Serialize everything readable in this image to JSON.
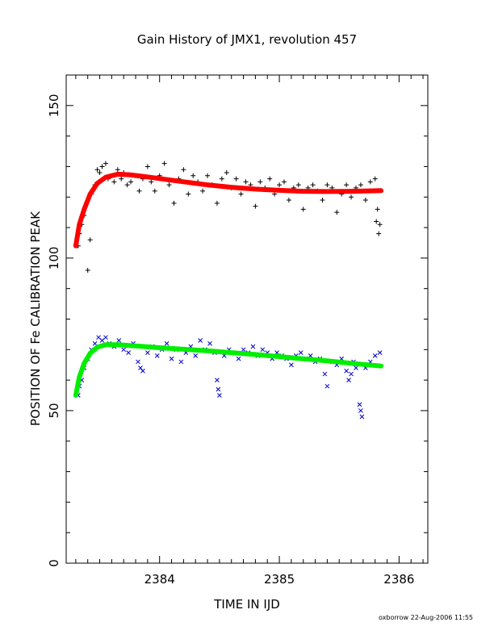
{
  "chart_data": {
    "type": "scatter",
    "title": "Gain History of JMX1, revolution 457",
    "xlabel": "TIME IN IJD",
    "ylabel": "POSITION OF Fe CALIBRATION PEAK",
    "xlim": [
      2383.22,
      2386.24
    ],
    "ylim": [
      0,
      160
    ],
    "xticks": [
      2384,
      2385,
      2386
    ],
    "yticks": [
      0,
      50,
      100,
      150
    ],
    "grid": false,
    "footer": "oxborrow 22-Aug-2006 11:55",
    "series": [
      {
        "marker": "plus",
        "color": "#000000",
        "points": [
          [
            2383.32,
            104
          ],
          [
            2383.33,
            108
          ],
          [
            2383.35,
            111
          ],
          [
            2383.37,
            114
          ],
          [
            2383.39,
            118
          ],
          [
            2383.4,
            96
          ],
          [
            2383.42,
            106
          ],
          [
            2383.43,
            121
          ],
          [
            2383.46,
            124
          ],
          [
            2383.48,
            129
          ],
          [
            2383.5,
            128
          ],
          [
            2383.52,
            130
          ],
          [
            2383.55,
            131
          ],
          [
            2383.57,
            126
          ],
          [
            2383.6,
            127
          ],
          [
            2383.62,
            125
          ],
          [
            2383.65,
            129
          ],
          [
            2383.68,
            126
          ],
          [
            2383.7,
            128
          ],
          [
            2383.73,
            124
          ],
          [
            2383.76,
            125
          ],
          [
            2383.8,
            127
          ],
          [
            2383.83,
            122
          ],
          [
            2383.86,
            126
          ],
          [
            2383.9,
            130
          ],
          [
            2383.93,
            125
          ],
          [
            2383.96,
            122
          ],
          [
            2384.0,
            127
          ],
          [
            2384.04,
            131
          ],
          [
            2384.08,
            124
          ],
          [
            2384.12,
            118
          ],
          [
            2384.16,
            126
          ],
          [
            2384.2,
            129
          ],
          [
            2384.24,
            121
          ],
          [
            2384.28,
            127
          ],
          [
            2384.32,
            125
          ],
          [
            2384.36,
            122
          ],
          [
            2384.4,
            127
          ],
          [
            2384.44,
            124
          ],
          [
            2384.48,
            118
          ],
          [
            2384.52,
            126
          ],
          [
            2384.56,
            128
          ],
          [
            2384.6,
            123
          ],
          [
            2384.64,
            126
          ],
          [
            2384.68,
            121
          ],
          [
            2384.72,
            125
          ],
          [
            2384.76,
            124
          ],
          [
            2384.8,
            117
          ],
          [
            2384.84,
            125
          ],
          [
            2384.88,
            123
          ],
          [
            2384.92,
            126
          ],
          [
            2384.96,
            121
          ],
          [
            2385.0,
            124
          ],
          [
            2385.04,
            125
          ],
          [
            2385.08,
            119
          ],
          [
            2385.12,
            123
          ],
          [
            2385.16,
            124
          ],
          [
            2385.2,
            116
          ],
          [
            2385.24,
            123
          ],
          [
            2385.28,
            124
          ],
          [
            2385.32,
            122
          ],
          [
            2385.36,
            119
          ],
          [
            2385.4,
            124
          ],
          [
            2385.44,
            123
          ],
          [
            2385.48,
            115
          ],
          [
            2385.52,
            121
          ],
          [
            2385.56,
            124
          ],
          [
            2385.6,
            120
          ],
          [
            2385.64,
            123
          ],
          [
            2385.68,
            124
          ],
          [
            2385.72,
            119
          ],
          [
            2385.76,
            125
          ],
          [
            2385.8,
            126
          ],
          [
            2385.81,
            112
          ],
          [
            2385.82,
            116
          ],
          [
            2385.83,
            108
          ],
          [
            2385.84,
            111
          ]
        ]
      },
      {
        "marker": "cross",
        "color": "#0000cc",
        "points": [
          [
            2383.32,
            55
          ],
          [
            2383.33,
            58
          ],
          [
            2383.35,
            60
          ],
          [
            2383.37,
            64
          ],
          [
            2383.4,
            67
          ],
          [
            2383.43,
            70
          ],
          [
            2383.46,
            72
          ],
          [
            2383.49,
            74
          ],
          [
            2383.52,
            73
          ],
          [
            2383.55,
            74
          ],
          [
            2383.58,
            72
          ],
          [
            2383.62,
            71
          ],
          [
            2383.66,
            73
          ],
          [
            2383.7,
            70
          ],
          [
            2383.74,
            69
          ],
          [
            2383.78,
            72
          ],
          [
            2383.82,
            66
          ],
          [
            2383.84,
            64
          ],
          [
            2383.86,
            63
          ],
          [
            2383.9,
            69
          ],
          [
            2383.94,
            71
          ],
          [
            2383.98,
            68
          ],
          [
            2384.02,
            70
          ],
          [
            2384.06,
            72
          ],
          [
            2384.1,
            67
          ],
          [
            2384.14,
            70
          ],
          [
            2384.18,
            66
          ],
          [
            2384.22,
            69
          ],
          [
            2384.26,
            71
          ],
          [
            2384.3,
            68
          ],
          [
            2384.34,
            73
          ],
          [
            2384.38,
            70
          ],
          [
            2384.42,
            72
          ],
          [
            2384.46,
            69
          ],
          [
            2384.48,
            60
          ],
          [
            2384.49,
            57
          ],
          [
            2384.5,
            55
          ],
          [
            2384.54,
            68
          ],
          [
            2384.58,
            70
          ],
          [
            2384.62,
            69
          ],
          [
            2384.66,
            67
          ],
          [
            2384.7,
            70
          ],
          [
            2384.74,
            69
          ],
          [
            2384.78,
            71
          ],
          [
            2384.82,
            68
          ],
          [
            2384.86,
            70
          ],
          [
            2384.9,
            69
          ],
          [
            2384.94,
            67
          ],
          [
            2384.98,
            69
          ],
          [
            2385.02,
            68
          ],
          [
            2385.06,
            67
          ],
          [
            2385.1,
            65
          ],
          [
            2385.14,
            68
          ],
          [
            2385.18,
            69
          ],
          [
            2385.22,
            67
          ],
          [
            2385.26,
            68
          ],
          [
            2385.3,
            66
          ],
          [
            2385.34,
            67
          ],
          [
            2385.38,
            62
          ],
          [
            2385.4,
            58
          ],
          [
            2385.44,
            66
          ],
          [
            2385.48,
            65
          ],
          [
            2385.52,
            67
          ],
          [
            2385.56,
            63
          ],
          [
            2385.58,
            60
          ],
          [
            2385.6,
            62
          ],
          [
            2385.62,
            66
          ],
          [
            2385.64,
            64
          ],
          [
            2385.67,
            52
          ],
          [
            2385.68,
            50
          ],
          [
            2385.69,
            48
          ],
          [
            2385.72,
            64
          ],
          [
            2385.76,
            66
          ],
          [
            2385.8,
            68
          ],
          [
            2385.84,
            69
          ]
        ]
      },
      {
        "marker": "fit-line",
        "color": "#ff0000",
        "points": [
          [
            2383.3,
            104
          ],
          [
            2383.33,
            111
          ],
          [
            2383.37,
            116
          ],
          [
            2383.42,
            121
          ],
          [
            2383.48,
            124.5
          ],
          [
            2383.55,
            126.5
          ],
          [
            2383.65,
            127.5
          ],
          [
            2383.75,
            127.3
          ],
          [
            2383.9,
            126.6
          ],
          [
            2384.05,
            125.8
          ],
          [
            2384.2,
            125
          ],
          [
            2384.4,
            124
          ],
          [
            2384.6,
            123.2
          ],
          [
            2384.8,
            122.6
          ],
          [
            2385.0,
            122.2
          ],
          [
            2385.2,
            121.9
          ],
          [
            2385.4,
            121.8
          ],
          [
            2385.6,
            121.9
          ],
          [
            2385.85,
            122.1
          ]
        ]
      },
      {
        "marker": "fit-line",
        "color": "#00ee00",
        "points": [
          [
            2383.3,
            55
          ],
          [
            2383.33,
            61
          ],
          [
            2383.37,
            65.5
          ],
          [
            2383.42,
            68.8
          ],
          [
            2383.48,
            70.8
          ],
          [
            2383.55,
            71.6
          ],
          [
            2383.65,
            71.6
          ],
          [
            2383.8,
            71.2
          ],
          [
            2384.0,
            70.6
          ],
          [
            2384.2,
            70.1
          ],
          [
            2384.4,
            69.6
          ],
          [
            2384.6,
            69
          ],
          [
            2384.8,
            68.4
          ],
          [
            2385.0,
            67.7
          ],
          [
            2385.2,
            67
          ],
          [
            2385.4,
            66.3
          ],
          [
            2385.6,
            65.5
          ],
          [
            2385.85,
            64.6
          ]
        ]
      }
    ]
  }
}
